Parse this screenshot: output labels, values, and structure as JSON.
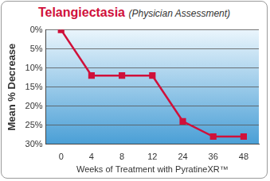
{
  "chart_data": {
    "type": "line",
    "title": "Telangiectasia",
    "subtitle": "(Physician Assessment)",
    "x_label": "Weeks of Treatment with PyratineXR™",
    "y_label": "Mean % Decrease",
    "categories": [
      "0",
      "4",
      "8",
      "12",
      "24",
      "36",
      "48"
    ],
    "values": [
      0,
      12,
      12,
      12,
      24,
      28,
      28
    ],
    "color": "#d0103a",
    "marker": "square",
    "line_style": "solid",
    "grid": true,
    "ylim": [
      0,
      30
    ],
    "yticks": [
      {
        "value": 0,
        "label": "0%"
      },
      {
        "value": 5,
        "label": "5%"
      },
      {
        "value": 10,
        "label": "10%"
      },
      {
        "value": 15,
        "label": "15%"
      },
      {
        "value": 20,
        "label": "20%"
      },
      {
        "value": 25,
        "label": "25%"
      },
      {
        "value": 30,
        "label": "30%"
      }
    ]
  }
}
